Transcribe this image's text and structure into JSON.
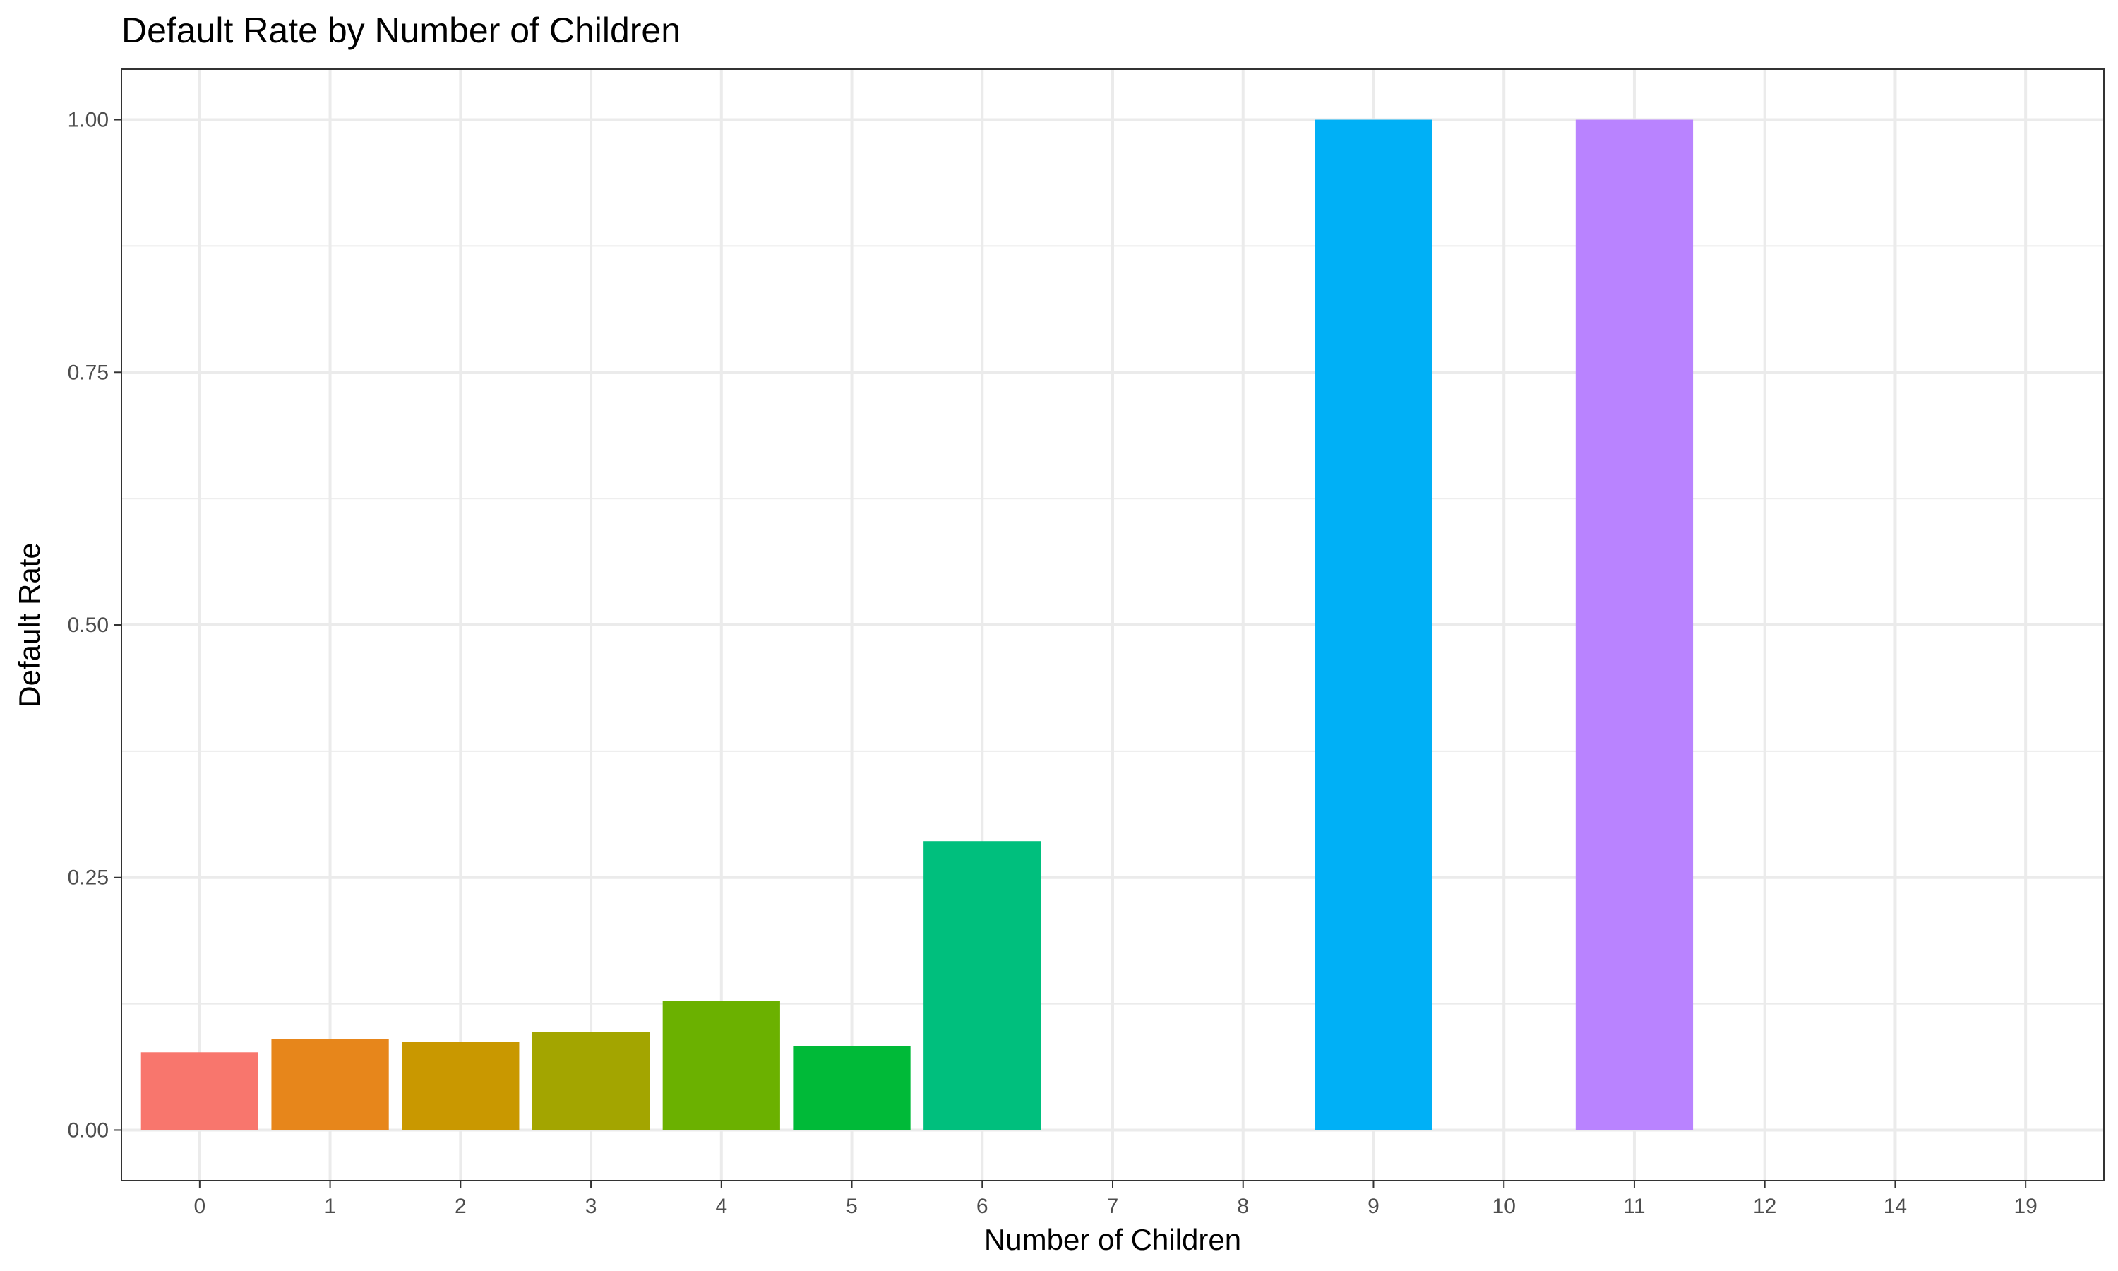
{
  "chart_data": {
    "type": "bar",
    "title": "Default Rate by Number of Children",
    "xlabel": "Number of Children",
    "ylabel": "Default Rate",
    "categories": [
      "0",
      "1",
      "2",
      "3",
      "4",
      "5",
      "6",
      "7",
      "8",
      "9",
      "10",
      "11",
      "12",
      "14",
      "19"
    ],
    "values": [
      0.077,
      0.09,
      0.087,
      0.097,
      0.128,
      0.083,
      0.286,
      0,
      0,
      1.0,
      0,
      1.0,
      0,
      0,
      0
    ],
    "colors": [
      "#F8766D",
      "#E7861B",
      "#C99800",
      "#A3A500",
      "#6BB100",
      "#00BA38",
      "#00BF7D",
      "#00C0AF",
      "#00BCD8",
      "#00B0F6",
      "#619CFF",
      "#B983FF",
      "#E76BF3",
      "#FD61D1",
      "#FF67A4"
    ],
    "ylim": [
      -0.05,
      1.05
    ],
    "yticks": [
      "0.00",
      "0.25",
      "0.50",
      "0.75",
      "1.00"
    ],
    "grid": true,
    "legend": "none"
  }
}
